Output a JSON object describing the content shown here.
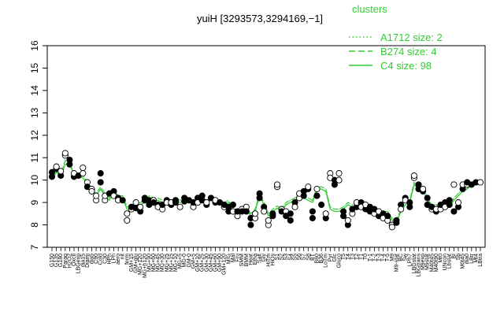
{
  "chart_data": {
    "type": "line",
    "title": "yuiH [3293573,3294169,−1]",
    "xlabel": "",
    "ylabel": "",
    "ylim": [
      7,
      16
    ],
    "yticks": [
      7,
      8,
      9,
      10,
      11,
      12,
      13,
      14,
      15,
      16
    ],
    "xlabels": [
      "G150",
      "G135",
      "G180",
      "Paraq",
      "H2O2",
      "Oxctl",
      "LBGexp",
      "dia15",
      "Diami",
      "dia5",
      "C90",
      "Cold",
      "C30",
      "HPh",
      "LPh",
      "aero",
      "nit",
      "ferm",
      "GM+15",
      "GM+glu",
      "MG+120",
      "MG+h120",
      "MG+90",
      "MG+60",
      "MG+45",
      "MG+30",
      "MG+25",
      "MG+15",
      "MG+10",
      "MG+5",
      "MG-0",
      "GM-0",
      "GM+5",
      "GM+10",
      "GM+25",
      "GM+30",
      "GM+45",
      "GM+60",
      "GM+90",
      "GM+120",
      "M/G",
      "Mal",
      "Fru",
      "SMM",
      "BMM",
      "Heat",
      "Etha",
      "Salt",
      "Gly",
      "HiTm",
      "HiOs",
      "S1",
      "S2",
      "S3",
      "S4",
      "S5",
      "S6",
      "S7",
      "S8",
      "BT",
      "B60",
      "B36",
      "LoTm",
      "Pyr",
      "Glc",
      "Gluco",
      "T5",
      "T4",
      "T3",
      "T2",
      "T1",
      "T0",
      "T-1",
      "T-2",
      "T-3",
      "T-4",
      "T-5",
      "M9",
      "M9-stat",
      "BC",
      "Sw",
      "LPh7",
      "LBGstat",
      "LBGtrans",
      "M9exp",
      "M9stat",
      "M40t45",
      "M40t90",
      "Mt0",
      "UNcon",
      "Lbstat",
      "BI",
      "Sb",
      "M0t45",
      "dia0",
      "LBtr",
      "Mt4",
      "LBtra"
    ],
    "legend": {
      "title": "clusters",
      "entries": [
        {
          "label": "A1712 size: 2",
          "style": "dotted"
        },
        {
          "label": "B274 size: 4",
          "style": "dashed"
        },
        {
          "label": "C4 size: 98",
          "style": "solid"
        }
      ]
    },
    "series": [
      {
        "cluster": "C4",
        "style": "solid",
        "color": "#33cc33",
        "values": [
          10.1,
          10.35,
          10.2,
          10.7,
          10.75,
          10.2,
          10.15,
          10.1,
          9.8,
          9.55,
          9.3,
          9.6,
          9.3,
          9.1,
          9.5,
          9.2,
          9.2,
          8.7,
          8.7,
          8.8,
          8.9,
          9.0,
          9.2,
          9.1,
          9.1,
          9.0,
          8.9,
          9.0,
          9.1,
          9.0,
          9.05,
          9.1,
          9.0,
          9.05,
          9.1,
          9.0,
          9.1,
          9.05,
          9.0,
          8.9,
          9.0,
          8.6,
          8.6,
          8.6,
          8.7,
          8.4,
          8.6,
          9.3,
          8.9,
          8.4,
          8.6,
          8.75,
          8.6,
          8.9,
          9.0,
          9.1,
          9.3,
          9.2,
          9.1,
          9.0,
          9.6,
          9.6,
          9.5,
          8.7,
          8.6,
          8.6,
          8.7,
          8.9,
          8.8,
          8.8,
          8.7,
          8.7,
          8.6,
          8.6,
          8.5,
          8.5,
          8.5,
          8.2,
          8.1,
          8.6,
          8.9,
          9.0,
          9.8,
          9.6,
          9.6,
          9.1,
          8.8,
          8.8,
          8.7,
          8.9,
          8.8,
          9.1,
          9.3,
          9.5,
          9.6,
          9.8,
          9.8,
          9.8
        ]
      },
      {
        "cluster": "B274",
        "style": "dashed",
        "color": "#33cc33",
        "values": [
          10.1,
          10.3,
          10.25,
          10.85,
          10.8,
          10.2,
          10.2,
          10.2,
          9.9,
          9.6,
          9.4,
          9.7,
          9.4,
          9.2,
          9.5,
          9.3,
          9.3,
          8.8,
          8.8,
          8.9,
          9.0,
          9.1,
          9.3,
          9.2,
          9.2,
          9.1,
          9.0,
          9.1,
          9.2,
          9.1,
          9.15,
          9.2,
          9.1,
          9.15,
          9.2,
          9.1,
          9.2,
          9.15,
          9.1,
          9.0,
          9.1,
          8.7,
          8.7,
          8.7,
          8.8,
          8.5,
          8.7,
          9.4,
          9.0,
          8.5,
          8.7,
          8.85,
          8.7,
          9.0,
          9.1,
          9.2,
          9.4,
          9.3,
          9.2,
          9.1,
          9.7,
          9.7,
          9.6,
          8.8,
          8.7,
          8.7,
          8.8,
          9.0,
          8.9,
          8.9,
          8.8,
          8.8,
          8.7,
          8.7,
          8.6,
          8.6,
          8.6,
          8.3,
          8.2,
          8.7,
          9.0,
          9.1,
          9.9,
          9.7,
          9.7,
          9.2,
          8.9,
          8.9,
          8.8,
          9.0,
          8.9,
          9.2,
          9.4,
          9.6,
          9.7,
          9.9,
          9.9,
          9.9
        ]
      },
      {
        "cluster": "A1712",
        "style": "dotted",
        "color": "#33cc33",
        "values": [
          10.15,
          10.4,
          10.3,
          10.9,
          10.85,
          10.3,
          10.2,
          10.2,
          9.9,
          9.6,
          9.4,
          9.7,
          9.4,
          9.2,
          9.6,
          9.3,
          9.3,
          8.8,
          8.8,
          8.9,
          9.0,
          9.1,
          9.3,
          9.2,
          9.2,
          9.1,
          9.0,
          9.1,
          9.2,
          9.1,
          9.15,
          9.2,
          9.1,
          9.15,
          9.2,
          9.1,
          9.2,
          9.15,
          9.1,
          9.0,
          9.1,
          8.7,
          8.7,
          8.7,
          8.8,
          8.5,
          8.7,
          9.4,
          9.0,
          8.5,
          8.7,
          8.85,
          8.7,
          9.0,
          9.1,
          9.2,
          9.4,
          9.3,
          9.2,
          9.1,
          9.7,
          9.7,
          9.6,
          8.8,
          8.7,
          8.7,
          8.8,
          9.0,
          8.9,
          8.9,
          8.8,
          8.8,
          8.7,
          8.7,
          8.6,
          8.6,
          8.6,
          8.3,
          8.2,
          8.7,
          9.0,
          9.1,
          9.9,
          9.7,
          9.7,
          9.2,
          8.9,
          8.9,
          8.8,
          9.0,
          8.9,
          9.2,
          9.4,
          9.6,
          9.7,
          9.9,
          9.9,
          9.9
        ]
      }
    ],
    "points": [
      {
        "x": 0,
        "y": 10.15,
        "f": 1
      },
      {
        "x": 0,
        "y": 10.35,
        "f": 1
      },
      {
        "x": 1,
        "y": 10.5,
        "f": 1
      },
      {
        "x": 1,
        "y": 10.6,
        "f": 0
      },
      {
        "x": 2,
        "y": 10.2,
        "f": 1
      },
      {
        "x": 2,
        "y": 10.4,
        "f": 0
      },
      {
        "x": 3,
        "y": 11.1,
        "f": 0
      },
      {
        "x": 3,
        "y": 11.2,
        "f": 0
      },
      {
        "x": 4,
        "y": 10.9,
        "f": 1
      },
      {
        "x": 4,
        "y": 10.7,
        "f": 1
      },
      {
        "x": 5,
        "y": 10.15,
        "f": 1
      },
      {
        "x": 5,
        "y": 10.3,
        "f": 0
      },
      {
        "x": 6,
        "y": 10.2,
        "f": 1
      },
      {
        "x": 7,
        "y": 10.55,
        "f": 0
      },
      {
        "x": 7,
        "y": 10.3,
        "f": 0
      },
      {
        "x": 8,
        "y": 9.9,
        "f": 0
      },
      {
        "x": 8,
        "y": 9.7,
        "f": 1
      },
      {
        "x": 9,
        "y": 9.6,
        "f": 0
      },
      {
        "x": 9,
        "y": 9.5,
        "f": 0
      },
      {
        "x": 10,
        "y": 9.1,
        "f": 0
      },
      {
        "x": 10,
        "y": 9.3,
        "f": 0
      },
      {
        "x": 11,
        "y": 10.3,
        "f": 1
      },
      {
        "x": 11,
        "y": 9.9,
        "f": 1
      },
      {
        "x": 12,
        "y": 9.1,
        "f": 0
      },
      {
        "x": 12,
        "y": 9.3,
        "f": 0
      },
      {
        "x": 13,
        "y": 9.4,
        "f": 1
      },
      {
        "x": 14,
        "y": 9.5,
        "f": 1
      },
      {
        "x": 14,
        "y": 9.3,
        "f": 0
      },
      {
        "x": 15,
        "y": 9.2,
        "f": 1
      },
      {
        "x": 15,
        "y": 9.1,
        "f": 0
      },
      {
        "x": 16,
        "y": 9.1,
        "f": 1
      },
      {
        "x": 17,
        "y": 8.2,
        "f": 0
      },
      {
        "x": 17,
        "y": 8.5,
        "f": 0
      },
      {
        "x": 18,
        "y": 8.7,
        "f": 0
      },
      {
        "x": 18,
        "y": 8.8,
        "f": 1
      },
      {
        "x": 19,
        "y": 9.0,
        "f": 0
      },
      {
        "x": 19,
        "y": 8.75,
        "f": 1
      },
      {
        "x": 20,
        "y": 8.6,
        "f": 1
      },
      {
        "x": 20,
        "y": 8.8,
        "f": 0
      },
      {
        "x": 21,
        "y": 9.1,
        "f": 1
      },
      {
        "x": 21,
        "y": 9.2,
        "f": 1
      },
      {
        "x": 22,
        "y": 8.9,
        "f": 1
      },
      {
        "x": 22,
        "y": 9.1,
        "f": 1
      },
      {
        "x": 23,
        "y": 9.1,
        "f": 0
      },
      {
        "x": 23,
        "y": 9.0,
        "f": 1
      },
      {
        "x": 24,
        "y": 8.9,
        "f": 1
      },
      {
        "x": 24,
        "y": 8.8,
        "f": 0
      },
      {
        "x": 25,
        "y": 8.7,
        "f": 0
      },
      {
        "x": 25,
        "y": 8.9,
        "f": 1
      },
      {
        "x": 26,
        "y": 9.1,
        "f": 1
      },
      {
        "x": 26,
        "y": 9.0,
        "f": 0
      },
      {
        "x": 27,
        "y": 8.9,
        "f": 1
      },
      {
        "x": 27,
        "y": 9.0,
        "f": 0
      },
      {
        "x": 28,
        "y": 9.1,
        "f": 1
      },
      {
        "x": 28,
        "y": 9.0,
        "f": 1
      },
      {
        "x": 29,
        "y": 8.8,
        "f": 0
      },
      {
        "x": 30,
        "y": 9.05,
        "f": 1
      },
      {
        "x": 30,
        "y": 9.2,
        "f": 1
      },
      {
        "x": 31,
        "y": 9.1,
        "f": 1
      },
      {
        "x": 32,
        "y": 8.8,
        "f": 0
      },
      {
        "x": 32,
        "y": 9.0,
        "f": 1
      },
      {
        "x": 33,
        "y": 9.2,
        "f": 1
      },
      {
        "x": 33,
        "y": 9.0,
        "f": 0
      },
      {
        "x": 34,
        "y": 9.3,
        "f": 1
      },
      {
        "x": 34,
        "y": 9.1,
        "f": 1
      },
      {
        "x": 35,
        "y": 8.9,
        "f": 1
      },
      {
        "x": 35,
        "y": 9.0,
        "f": 0
      },
      {
        "x": 36,
        "y": 9.2,
        "f": 1
      },
      {
        "x": 37,
        "y": 9.0,
        "f": 1
      },
      {
        "x": 37,
        "y": 9.1,
        "f": 0
      },
      {
        "x": 38,
        "y": 9.0,
        "f": 1
      },
      {
        "x": 39,
        "y": 8.8,
        "f": 0
      },
      {
        "x": 39,
        "y": 8.9,
        "f": 1
      },
      {
        "x": 40,
        "y": 8.6,
        "f": 1
      },
      {
        "x": 40,
        "y": 8.8,
        "f": 1
      },
      {
        "x": 41,
        "y": 8.6,
        "f": 0
      },
      {
        "x": 41,
        "y": 8.9,
        "f": 1
      },
      {
        "x": 42,
        "y": 8.4,
        "f": 0
      },
      {
        "x": 42,
        "y": 8.6,
        "f": 1
      },
      {
        "x": 43,
        "y": 8.7,
        "f": 0
      },
      {
        "x": 43,
        "y": 8.6,
        "f": 1
      },
      {
        "x": 44,
        "y": 8.8,
        "f": 0
      },
      {
        "x": 44,
        "y": 8.6,
        "f": 1
      },
      {
        "x": 45,
        "y": 8.0,
        "f": 1
      },
      {
        "x": 45,
        "y": 8.3,
        "f": 1
      },
      {
        "x": 46,
        "y": 8.3,
        "f": 0
      },
      {
        "x": 46,
        "y": 8.5,
        "f": 0
      },
      {
        "x": 47,
        "y": 9.2,
        "f": 1
      },
      {
        "x": 47,
        "y": 9.4,
        "f": 1
      },
      {
        "x": 48,
        "y": 8.8,
        "f": 1
      },
      {
        "x": 48,
        "y": 8.6,
        "f": 0
      },
      {
        "x": 49,
        "y": 8.0,
        "f": 0
      },
      {
        "x": 49,
        "y": 8.2,
        "f": 0
      },
      {
        "x": 50,
        "y": 8.4,
        "f": 1
      },
      {
        "x": 50,
        "y": 8.5,
        "f": 1
      },
      {
        "x": 51,
        "y": 9.7,
        "f": 0
      },
      {
        "x": 51,
        "y": 9.8,
        "f": 0
      },
      {
        "x": 52,
        "y": 8.7,
        "f": 0
      },
      {
        "x": 52,
        "y": 8.6,
        "f": 1
      },
      {
        "x": 53,
        "y": 8.6,
        "f": 0
      },
      {
        "x": 53,
        "y": 8.4,
        "f": 1
      },
      {
        "x": 54,
        "y": 8.2,
        "f": 1
      },
      {
        "x": 54,
        "y": 8.5,
        "f": 1
      },
      {
        "x": 55,
        "y": 9.0,
        "f": 1
      },
      {
        "x": 55,
        "y": 8.8,
        "f": 0
      },
      {
        "x": 56,
        "y": 9.2,
        "f": 0
      },
      {
        "x": 56,
        "y": 9.4,
        "f": 0
      },
      {
        "x": 57,
        "y": 9.3,
        "f": 1
      },
      {
        "x": 57,
        "y": 9.5,
        "f": 1
      },
      {
        "x": 58,
        "y": 9.6,
        "f": 1
      },
      {
        "x": 58,
        "y": 9.7,
        "f": 0
      },
      {
        "x": 59,
        "y": 8.6,
        "f": 1
      },
      {
        "x": 59,
        "y": 8.3,
        "f": 1
      },
      {
        "x": 60,
        "y": 9.6,
        "f": 0
      },
      {
        "x": 60,
        "y": 9.3,
        "f": 1
      },
      {
        "x": 61,
        "y": 8.9,
        "f": 1
      },
      {
        "x": 62,
        "y": 8.3,
        "f": 1
      },
      {
        "x": 62,
        "y": 8.5,
        "f": 0
      },
      {
        "x": 63,
        "y": 10.3,
        "f": 0
      },
      {
        "x": 63,
        "y": 10.1,
        "f": 0
      },
      {
        "x": 64,
        "y": 10.0,
        "f": 1
      },
      {
        "x": 64,
        "y": 9.8,
        "f": 1
      },
      {
        "x": 65,
        "y": 10.3,
        "f": 0
      },
      {
        "x": 65,
        "y": 10.0,
        "f": 0
      },
      {
        "x": 66,
        "y": 8.6,
        "f": 1
      },
      {
        "x": 66,
        "y": 8.4,
        "f": 1
      },
      {
        "x": 67,
        "y": 8.0,
        "f": 1
      },
      {
        "x": 67,
        "y": 8.2,
        "f": 0
      },
      {
        "x": 68,
        "y": 8.5,
        "f": 0
      },
      {
        "x": 68,
        "y": 8.7,
        "f": 1
      },
      {
        "x": 69,
        "y": 8.8,
        "f": 1
      },
      {
        "x": 69,
        "y": 9.0,
        "f": 0
      },
      {
        "x": 70,
        "y": 9.0,
        "f": 1
      },
      {
        "x": 70,
        "y": 8.8,
        "f": 0
      },
      {
        "x": 71,
        "y": 8.7,
        "f": 1
      },
      {
        "x": 71,
        "y": 8.9,
        "f": 0
      },
      {
        "x": 72,
        "y": 8.6,
        "f": 1
      },
      {
        "x": 72,
        "y": 8.8,
        "f": 1
      },
      {
        "x": 73,
        "y": 8.5,
        "f": 0
      },
      {
        "x": 73,
        "y": 8.7,
        "f": 1
      },
      {
        "x": 74,
        "y": 8.4,
        "f": 1
      },
      {
        "x": 74,
        "y": 8.6,
        "f": 0
      },
      {
        "x": 75,
        "y": 8.5,
        "f": 1
      },
      {
        "x": 75,
        "y": 8.3,
        "f": 0
      },
      {
        "x": 76,
        "y": 8.2,
        "f": 0
      },
      {
        "x": 76,
        "y": 8.4,
        "f": 1
      },
      {
        "x": 77,
        "y": 8.0,
        "f": 0
      },
      {
        "x": 77,
        "y": 7.9,
        "f": 0
      },
      {
        "x": 78,
        "y": 8.2,
        "f": 1
      },
      {
        "x": 78,
        "y": 8.1,
        "f": 1
      },
      {
        "x": 79,
        "y": 8.9,
        "f": 1
      },
      {
        "x": 79,
        "y": 8.7,
        "f": 0
      },
      {
        "x": 80,
        "y": 9.2,
        "f": 1
      },
      {
        "x": 80,
        "y": 9.1,
        "f": 0
      },
      {
        "x": 81,
        "y": 9.0,
        "f": 1
      },
      {
        "x": 81,
        "y": 8.8,
        "f": 1
      },
      {
        "x": 82,
        "y": 10.1,
        "f": 0
      },
      {
        "x": 82,
        "y": 10.2,
        "f": 0
      },
      {
        "x": 83,
        "y": 9.6,
        "f": 1
      },
      {
        "x": 83,
        "y": 9.8,
        "f": 1
      },
      {
        "x": 84,
        "y": 9.5,
        "f": 1
      },
      {
        "x": 84,
        "y": 9.6,
        "f": 0
      },
      {
        "x": 85,
        "y": 9.2,
        "f": 1
      },
      {
        "x": 85,
        "y": 8.9,
        "f": 1
      },
      {
        "x": 86,
        "y": 8.7,
        "f": 0
      },
      {
        "x": 86,
        "y": 8.8,
        "f": 1
      },
      {
        "x": 87,
        "y": 8.6,
        "f": 1
      },
      {
        "x": 87,
        "y": 8.7,
        "f": 0
      },
      {
        "x": 88,
        "y": 8.7,
        "f": 0
      },
      {
        "x": 88,
        "y": 8.9,
        "f": 1
      },
      {
        "x": 89,
        "y": 9.0,
        "f": 1
      },
      {
        "x": 89,
        "y": 8.8,
        "f": 0
      },
      {
        "x": 90,
        "y": 9.1,
        "f": 1
      },
      {
        "x": 90,
        "y": 8.9,
        "f": 1
      },
      {
        "x": 91,
        "y": 9.8,
        "f": 0
      },
      {
        "x": 91,
        "y": 8.6,
        "f": 1
      },
      {
        "x": 92,
        "y": 8.8,
        "f": 1
      },
      {
        "x": 92,
        "y": 9.0,
        "f": 0
      },
      {
        "x": 93,
        "y": 9.6,
        "f": 1
      },
      {
        "x": 93,
        "y": 9.8,
        "f": 0
      },
      {
        "x": 94,
        "y": 9.8,
        "f": 0
      },
      {
        "x": 94,
        "y": 9.9,
        "f": 1
      },
      {
        "x": 95,
        "y": 9.8,
        "f": 1
      },
      {
        "x": 96,
        "y": 9.9,
        "f": 1
      },
      {
        "x": 97,
        "y": 9.9,
        "f": 0
      }
    ]
  }
}
